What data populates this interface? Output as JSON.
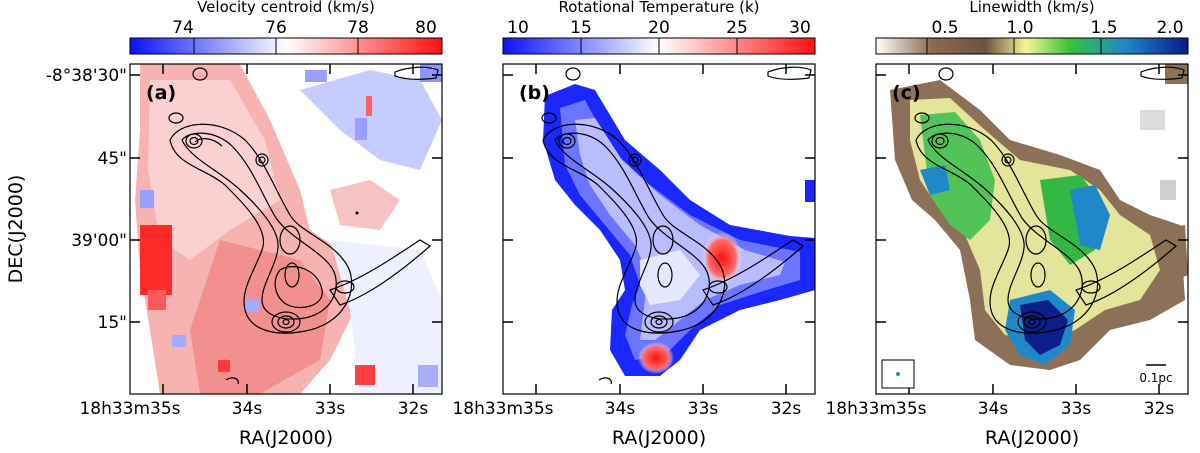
{
  "figure": {
    "x_axis_label": "RA(J2000)",
    "y_axis_label": "DEC(J2000)",
    "ra_ticks": [
      "18h33m35s",
      "34s",
      "33s",
      "32s"
    ],
    "dec_ticks": [
      "-8°38'30\"",
      "45\"",
      "39'00\"",
      "15\""
    ],
    "scalebar_label": "0.1pc"
  },
  "panels": [
    {
      "label": "(a)",
      "colorbar_title": "Velocity centroid (km/s)",
      "colorbar_ticks": [
        "74",
        "76",
        "78",
        "80"
      ],
      "colormap": [
        "#0a12ff",
        "#ffffff",
        "#ff1010"
      ]
    },
    {
      "label": "(b)",
      "colorbar_title": "Rotational Temperature (k)",
      "colorbar_ticks": [
        "10",
        "15",
        "20",
        "25",
        "30"
      ],
      "colormap": [
        "#0a12ff",
        "#ffffff",
        "#ff1010"
      ]
    },
    {
      "label": "(c)",
      "colorbar_title": "Linewidth (km/s)",
      "colorbar_ticks": [
        "0.5",
        "1.0",
        "1.5",
        "2.0"
      ],
      "colormap": [
        "#ffffff",
        "#8b6a4e",
        "#6e5240",
        "#f5f59a",
        "#39c33a",
        "#1e88c9",
        "#0b1a8a"
      ]
    }
  ]
}
